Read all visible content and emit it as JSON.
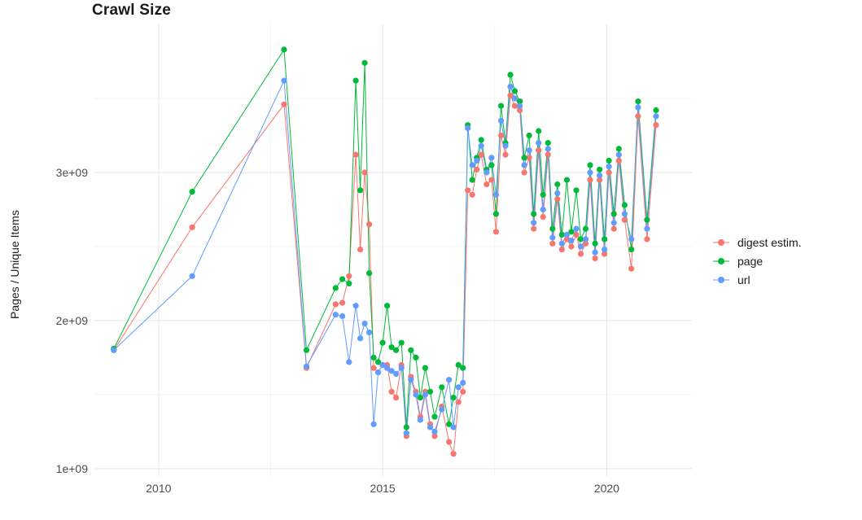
{
  "chart_data": {
    "type": "scatter",
    "title": "Crawl Size",
    "xlabel": "",
    "ylabel": "Pages / Unique Items",
    "values_unit": "1e+09",
    "grid": true,
    "legend_position": "right",
    "grid_major_color": "#e5e5e5",
    "grid_minor_color": "#f2f2f2",
    "tick_label_color": "#4d4d4d",
    "x_range": [
      2008.55,
      2021.9
    ],
    "y_range": [
      0.95,
      4.0
    ],
    "x_ticks": [
      {
        "value": 2010,
        "label": "2010"
      },
      {
        "value": 2015,
        "label": "2015"
      },
      {
        "value": 2020,
        "label": "2020"
      }
    ],
    "y_ticks": [
      {
        "value": 1.0,
        "label": "1e+09"
      },
      {
        "value": 2.0,
        "label": "2e+09"
      },
      {
        "value": 3.0,
        "label": "3e+09"
      }
    ],
    "x_minor": [
      2012.5,
      2017.5
    ],
    "y_minor": [
      1.5,
      2.5,
      3.5
    ],
    "x": [
      2009.0,
      2010.75,
      2012.8,
      2013.3,
      2013.95,
      2014.1,
      2014.25,
      2014.4,
      2014.5,
      2014.6,
      2014.7,
      2014.8,
      2014.9,
      2015.0,
      2015.1,
      2015.2,
      2015.3,
      2015.42,
      2015.53,
      2015.63,
      2015.74,
      2015.84,
      2015.95,
      2016.06,
      2016.16,
      2016.32,
      2016.48,
      2016.58,
      2016.69,
      2016.79,
      2016.9,
      2017.0,
      2017.1,
      2017.2,
      2017.32,
      2017.43,
      2017.53,
      2017.64,
      2017.74,
      2017.85,
      2017.95,
      2018.06,
      2018.16,
      2018.27,
      2018.37,
      2018.48,
      2018.58,
      2018.69,
      2018.79,
      2018.9,
      2019.0,
      2019.11,
      2019.21,
      2019.32,
      2019.42,
      2019.53,
      2019.63,
      2019.74,
      2019.84,
      2019.95,
      2020.05,
      2020.16,
      2020.27,
      2020.4,
      2020.55,
      2020.7,
      2020.9,
      2021.1
    ],
    "series": [
      {
        "name": "digest estim.",
        "color": "#F8766D",
        "values": [
          1.8,
          2.63,
          3.46,
          1.68,
          2.11,
          2.12,
          2.3,
          3.12,
          2.48,
          3.0,
          2.65,
          1.68,
          1.65,
          1.7,
          1.7,
          1.52,
          1.48,
          1.7,
          1.22,
          1.62,
          1.52,
          1.35,
          1.52,
          1.3,
          1.22,
          1.42,
          1.18,
          1.1,
          1.45,
          1.52,
          2.88,
          2.85,
          3.02,
          3.12,
          2.92,
          2.95,
          2.6,
          3.25,
          3.12,
          3.52,
          3.45,
          3.42,
          3.0,
          3.1,
          2.62,
          3.15,
          2.7,
          3.12,
          2.52,
          2.82,
          2.48,
          2.55,
          2.5,
          2.58,
          2.45,
          2.52,
          2.95,
          2.42,
          2.95,
          2.45,
          3.0,
          2.62,
          3.08,
          2.68,
          2.35,
          3.38,
          2.55,
          3.32
        ]
      },
      {
        "name": "page",
        "color": "#00BA38",
        "values": [
          1.81,
          2.87,
          3.83,
          1.8,
          2.22,
          2.28,
          2.25,
          3.62,
          2.88,
          3.74,
          2.32,
          1.75,
          1.72,
          1.85,
          2.1,
          1.82,
          1.8,
          1.85,
          1.28,
          1.8,
          1.75,
          1.48,
          1.68,
          1.52,
          1.35,
          1.55,
          1.3,
          1.48,
          1.7,
          1.68,
          3.32,
          2.95,
          3.1,
          3.22,
          3.02,
          3.05,
          2.72,
          3.45,
          3.2,
          3.66,
          3.55,
          3.48,
          3.1,
          3.25,
          2.72,
          3.28,
          2.85,
          3.2,
          2.62,
          2.92,
          2.58,
          2.95,
          2.6,
          2.88,
          2.55,
          2.62,
          3.05,
          2.52,
          3.02,
          2.55,
          3.08,
          2.72,
          3.16,
          2.78,
          2.48,
          3.48,
          2.68,
          3.42
        ]
      },
      {
        "name": "url",
        "color": "#619CFF",
        "values": [
          1.8,
          2.3,
          3.62,
          1.69,
          2.04,
          2.03,
          1.72,
          2.1,
          1.88,
          1.98,
          1.92,
          1.3,
          1.65,
          1.7,
          1.68,
          1.66,
          1.64,
          1.68,
          1.24,
          1.6,
          1.5,
          1.33,
          1.5,
          1.28,
          1.25,
          1.4,
          1.6,
          1.28,
          1.55,
          1.58,
          3.3,
          3.05,
          3.08,
          3.18,
          3.0,
          3.1,
          2.85,
          3.35,
          3.18,
          3.58,
          3.5,
          3.45,
          3.05,
          3.15,
          2.66,
          3.2,
          2.75,
          3.16,
          2.56,
          2.86,
          2.52,
          2.58,
          2.54,
          2.62,
          2.5,
          2.55,
          3.0,
          2.46,
          2.98,
          2.48,
          3.04,
          2.66,
          3.12,
          2.72,
          2.55,
          3.44,
          2.62,
          3.38
        ]
      }
    ]
  }
}
